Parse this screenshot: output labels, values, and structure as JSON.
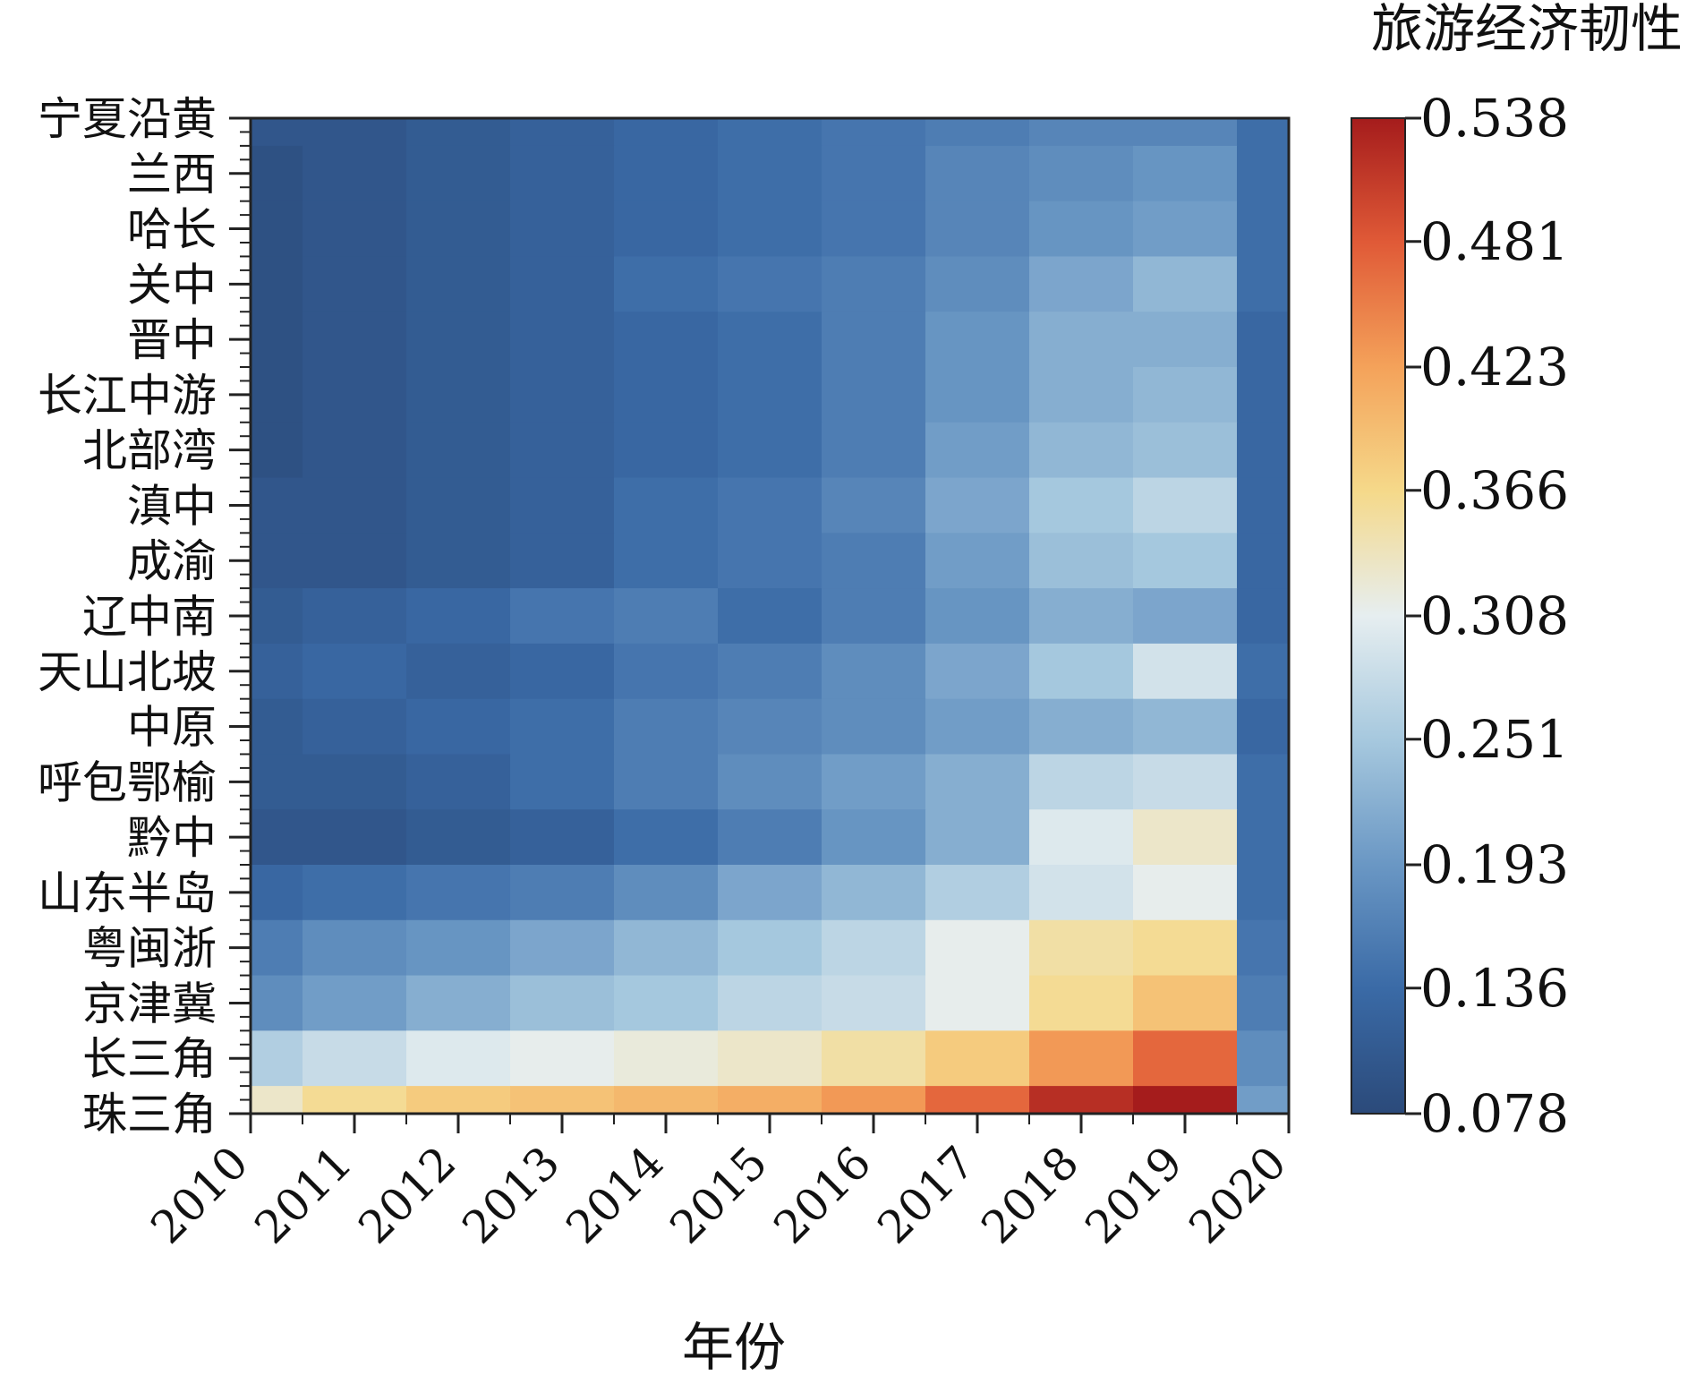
{
  "chart_data": {
    "type": "heatmap",
    "title": "",
    "xlabel": "年份",
    "ylabel": "",
    "colorbar_label": "旅游经济韧性",
    "x_ticks": [
      "2010",
      "2011",
      "2012",
      "2013",
      "2014",
      "2015",
      "2016",
      "2017",
      "2018",
      "2019",
      "2020"
    ],
    "y_categories": [
      "宁夏沿黄",
      "兰西",
      "哈长",
      "关中",
      "晋中",
      "长江中游",
      "北部湾",
      "滇中",
      "成渝",
      "辽中南",
      "天山北坡",
      "中原",
      "呼包鄂榆",
      "黔中",
      "山东半岛",
      "粤闽浙",
      "京津冀",
      "长三角",
      "珠三角"
    ],
    "colorbar_ticks": [
      0.078,
      0.136,
      0.193,
      0.251,
      0.308,
      0.366,
      0.423,
      0.481,
      0.538
    ],
    "colorbar_tick_labels": [
      "0.078",
      "0.136",
      "0.193",
      "0.251",
      "0.308",
      "0.366",
      "0.423",
      "0.481",
      "0.538"
    ],
    "zlim": [
      0.078,
      0.538
    ],
    "colormap": [
      "#2b4a7a",
      "#3a6aa6",
      "#6a97c4",
      "#a6c8de",
      "#e6eef0",
      "#f5d98a",
      "#f4a25a",
      "#e05a37",
      "#a51c1c"
    ],
    "values": [
      [
        0.1,
        0.1,
        0.11,
        0.12,
        0.13,
        0.14,
        0.15,
        0.16,
        0.17,
        0.17,
        0.14
      ],
      [
        0.09,
        0.1,
        0.11,
        0.12,
        0.13,
        0.14,
        0.15,
        0.17,
        0.18,
        0.19,
        0.14
      ],
      [
        0.09,
        0.1,
        0.11,
        0.12,
        0.13,
        0.14,
        0.15,
        0.17,
        0.19,
        0.2,
        0.14
      ],
      [
        0.09,
        0.1,
        0.11,
        0.12,
        0.14,
        0.15,
        0.16,
        0.18,
        0.21,
        0.23,
        0.14
      ],
      [
        0.09,
        0.1,
        0.11,
        0.12,
        0.13,
        0.14,
        0.16,
        0.19,
        0.22,
        0.22,
        0.13
      ],
      [
        0.09,
        0.1,
        0.11,
        0.12,
        0.13,
        0.14,
        0.16,
        0.19,
        0.22,
        0.23,
        0.13
      ],
      [
        0.09,
        0.1,
        0.11,
        0.12,
        0.13,
        0.14,
        0.16,
        0.2,
        0.23,
        0.24,
        0.13
      ],
      [
        0.1,
        0.1,
        0.11,
        0.12,
        0.14,
        0.15,
        0.17,
        0.21,
        0.25,
        0.27,
        0.13
      ],
      [
        0.1,
        0.1,
        0.11,
        0.12,
        0.14,
        0.15,
        0.16,
        0.2,
        0.24,
        0.25,
        0.13
      ],
      [
        0.11,
        0.12,
        0.13,
        0.15,
        0.16,
        0.14,
        0.16,
        0.19,
        0.22,
        0.21,
        0.13
      ],
      [
        0.12,
        0.13,
        0.12,
        0.13,
        0.15,
        0.16,
        0.18,
        0.21,
        0.25,
        0.29,
        0.14
      ],
      [
        0.11,
        0.12,
        0.13,
        0.14,
        0.16,
        0.17,
        0.18,
        0.2,
        0.22,
        0.23,
        0.13
      ],
      [
        0.11,
        0.11,
        0.12,
        0.14,
        0.16,
        0.18,
        0.2,
        0.22,
        0.27,
        0.28,
        0.14
      ],
      [
        0.1,
        0.1,
        0.11,
        0.12,
        0.14,
        0.16,
        0.19,
        0.22,
        0.3,
        0.33,
        0.14
      ],
      [
        0.13,
        0.14,
        0.15,
        0.16,
        0.18,
        0.21,
        0.23,
        0.26,
        0.29,
        0.31,
        0.14
      ],
      [
        0.16,
        0.18,
        0.19,
        0.21,
        0.23,
        0.25,
        0.27,
        0.31,
        0.35,
        0.36,
        0.15
      ],
      [
        0.18,
        0.2,
        0.22,
        0.24,
        0.25,
        0.27,
        0.28,
        0.31,
        0.36,
        0.39,
        0.16
      ],
      [
        0.26,
        0.28,
        0.3,
        0.31,
        0.32,
        0.33,
        0.35,
        0.38,
        0.43,
        0.47,
        0.18
      ],
      [
        0.33,
        0.36,
        0.38,
        0.39,
        0.4,
        0.41,
        0.43,
        0.47,
        0.52,
        0.54,
        0.2
      ]
    ]
  }
}
